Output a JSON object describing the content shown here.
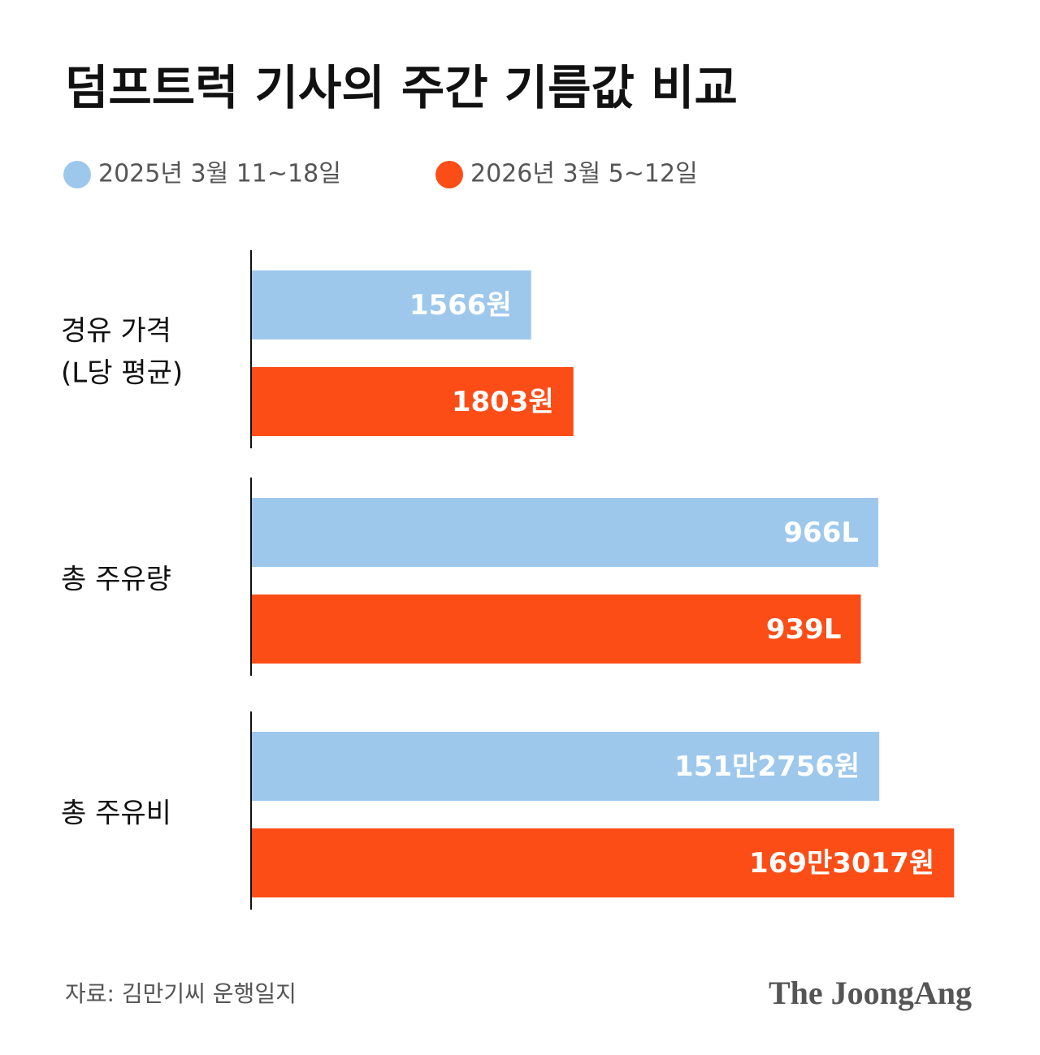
{
  "title": "덤프트럭 기사의 주간 기름값 비교",
  "legend": [
    {
      "name": "2025년 3월 11~18일",
      "color": "#9dc8ec"
    },
    {
      "name": "2026년 3월 5~12일",
      "color": "#fc4d17"
    }
  ],
  "source": "자료: 김만기씨 운행일지",
  "logo": "The JoongAng",
  "chart_data": [
    {
      "type": "bar",
      "label": [
        "경유 가격",
        "(L당 평균)"
      ],
      "xlim": [
        0,
        4000
      ],
      "series": [
        {
          "values": [
            1566
          ],
          "value_labels": [
            "1566원"
          ]
        },
        {
          "values": [
            1803
          ],
          "value_labels": [
            "1803원"
          ]
        }
      ]
    },
    {
      "type": "bar",
      "label": [
        "총 주유량"
      ],
      "xlim": [
        0,
        1100
      ],
      "series": [
        {
          "values": [
            966
          ],
          "value_labels": [
            "966L"
          ]
        },
        {
          "values": [
            939
          ],
          "value_labels": [
            "939L"
          ]
        }
      ]
    },
    {
      "type": "bar",
      "label": [
        "총 주유비"
      ],
      "xlim": [
        0,
        1720000
      ],
      "series": [
        {
          "values": [
            1512756
          ],
          "value_labels": [
            "151만2756원"
          ]
        },
        {
          "values": [
            1693017
          ],
          "value_labels": [
            "169만3017원"
          ]
        }
      ]
    }
  ]
}
